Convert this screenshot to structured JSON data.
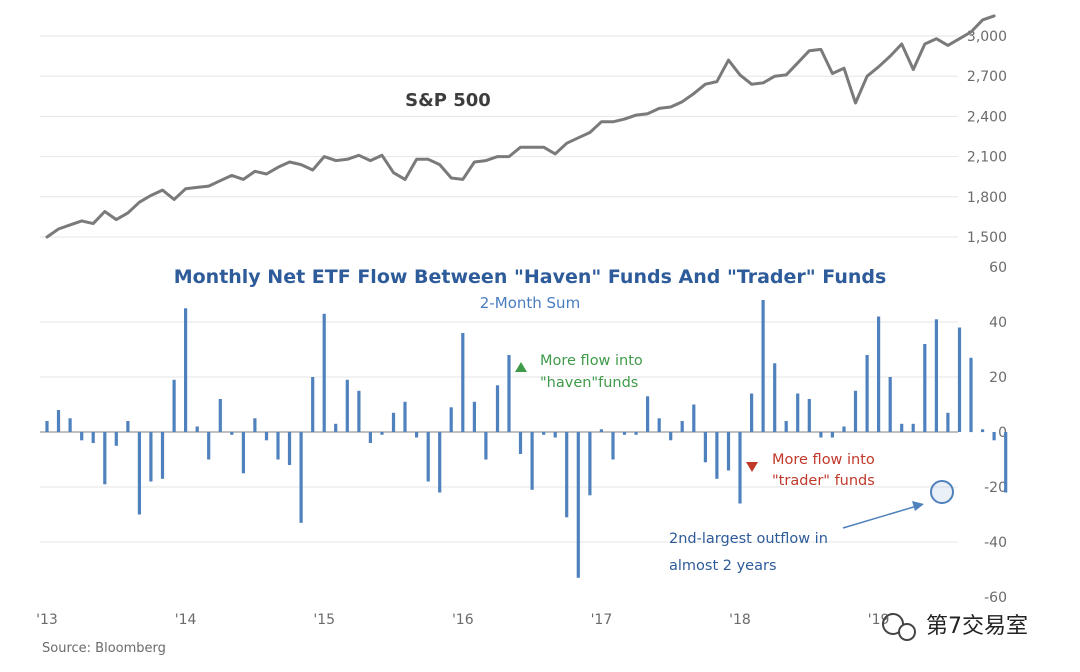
{
  "chart_data": [
    {
      "type": "line",
      "label": "S&P 500",
      "y_ticks": [
        "3,000",
        "2,700",
        "2,400",
        "2,100",
        "1,800",
        "1,500"
      ],
      "y_tick_values": [
        3000,
        2700,
        2400,
        2100,
        1800,
        1500
      ],
      "ylim": [
        1420,
        3220
      ],
      "series": [
        {
          "name": "S&P 500",
          "values": [
            1500,
            1560,
            1590,
            1620,
            1600,
            1690,
            1630,
            1680,
            1760,
            1810,
            1850,
            1780,
            1860,
            1870,
            1880,
            1920,
            1960,
            1930,
            1990,
            1970,
            2020,
            2060,
            2040,
            2000,
            2100,
            2070,
            2080,
            2110,
            2070,
            2110,
            1980,
            1930,
            2080,
            2080,
            2040,
            1940,
            1930,
            2060,
            2070,
            2100,
            2100,
            2170,
            2170,
            2170,
            2120,
            2200,
            2240,
            2280,
            2360,
            2360,
            2380,
            2410,
            2420,
            2460,
            2470,
            2510,
            2570,
            2640,
            2660,
            2820,
            2710,
            2640,
            2650,
            2700,
            2710,
            2800,
            2890,
            2900,
            2720,
            2760,
            2500,
            2700,
            2770,
            2850,
            2940,
            2750,
            2940,
            2980,
            2930,
            2980,
            3030,
            3120,
            3150
          ]
        }
      ]
    },
    {
      "type": "bar",
      "title": "Monthly Net ETF Flow Between \"Haven\" Funds And \"Trader\" Funds",
      "subtitle": "2-Month Sum",
      "y_ticks": [
        "60",
        "40",
        "20",
        "0",
        "-20",
        "-40",
        "-60"
      ],
      "y_tick_values": [
        60,
        40,
        20,
        0,
        -20,
        -40,
        -60
      ],
      "ylim": [
        -60,
        60
      ],
      "x_ticks": [
        "'13",
        "'14",
        "'15",
        "'16",
        "'17",
        "'18",
        "'19"
      ],
      "x_tick_index": [
        0,
        12,
        24,
        36,
        48,
        60,
        72
      ],
      "series": [
        {
          "name": "Net flow",
          "values": [
            4,
            8,
            5,
            -3,
            -4,
            -19,
            -5,
            4,
            -30,
            -18,
            -17,
            19,
            45,
            2,
            -10,
            12,
            -1,
            -15,
            5,
            -3,
            -10,
            -12,
            -33,
            20,
            43,
            3,
            19,
            15,
            -4,
            -1,
            7,
            11,
            -2,
            -18,
            -22,
            9,
            36,
            11,
            -10,
            17,
            28,
            -8,
            -21,
            -1,
            -2,
            -31,
            -53,
            -23,
            1,
            -10,
            -1,
            -1,
            13,
            5,
            -3,
            4,
            10,
            -11,
            -17,
            -14,
            -26,
            14,
            48,
            25,
            4,
            14,
            12,
            -2,
            -2,
            2,
            15,
            28,
            42,
            20,
            3,
            3,
            32,
            41,
            7,
            38,
            27,
            1,
            -3,
            -22
          ]
        }
      ],
      "annotations": {
        "green_line1": "More flow into",
        "green_line2": "\"haven\"funds",
        "red_line1": "More flow into",
        "red_line2": "\"trader\" funds",
        "blue_line1": "2nd-largest outflow in",
        "blue_line2": "almost 2 years"
      }
    }
  ],
  "source": "Source: Bloomberg",
  "watermark": "第7交易室",
  "colors": {
    "line": "#7a7a7a",
    "bar": "#4f81bd",
    "grid": "#e6e6e6",
    "title": "#2e5b9a",
    "green": "#3f9a4a",
    "red": "#c0392b"
  }
}
